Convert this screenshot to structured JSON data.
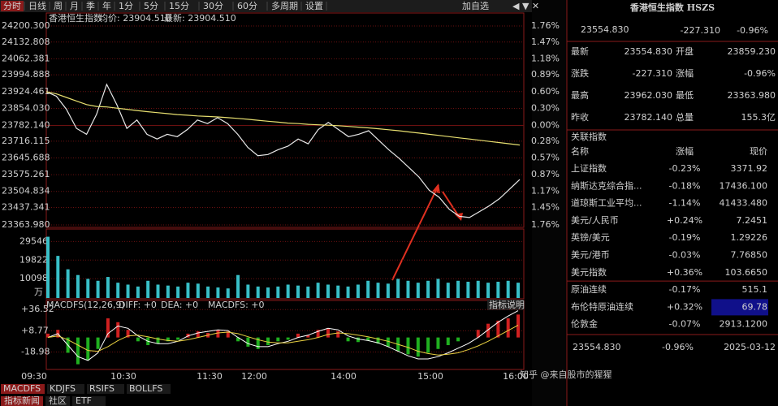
{
  "toolbar": {
    "tabs": [
      "分时",
      "日线",
      "周",
      "月",
      "季",
      "年",
      "1分",
      "5分",
      "15分",
      "30分",
      "60分",
      "多周期",
      "设置"
    ],
    "add": "加自选"
  },
  "chart_data": {
    "type": "line",
    "title": "香港恒生指数",
    "info": [
      "均价: 23904.510",
      "最新: 23904.510"
    ],
    "ylim": [
      23363.98,
      24200.3
    ],
    "yticks": [
      {
        "value": 24200.3,
        "label": "24200.300"
      },
      {
        "value": 24132.808,
        "label": "24132.808"
      },
      {
        "value": 24062.381,
        "label": "24062.381"
      },
      {
        "value": 23994.888,
        "label": "23994.888"
      },
      {
        "value": 23924.461,
        "label": "23924.461"
      },
      {
        "value": 23854.03,
        "label": "23854.030"
      },
      {
        "value": 23782.14,
        "label": "23782.140"
      },
      {
        "value": 23716.115,
        "label": "23716.115"
      },
      {
        "value": 23645.688,
        "label": "23645.688"
      },
      {
        "value": 23575.261,
        "label": "23575.261"
      },
      {
        "value": 23504.834,
        "label": "23504.834"
      },
      {
        "value": 23437.341,
        "label": "23437.341"
      },
      {
        "value": 23363.98,
        "label": "23363.980"
      }
    ],
    "pct_ticks": [
      "1.76%",
      "1.47%",
      "1.18%",
      "0.89%",
      "0.60%",
      "0.30%",
      "0.00%",
      "0.28%",
      "0.57%",
      "0.87%",
      "1.17%",
      "1.45%",
      "1.76%"
    ],
    "x_labels": [
      "09:30",
      "10:30",
      "11:30",
      "12:00",
      "14:00",
      "15:00",
      "16:00"
    ],
    "series": [
      {
        "color": "#e8e8e8",
        "values": [
          23924,
          23905,
          23850,
          23770,
          23745,
          23830,
          23955,
          23870,
          23770,
          23805,
          23745,
          23725,
          23745,
          23735,
          23765,
          23805,
          23790,
          23815,
          23790,
          23745,
          23690,
          23655,
          23660,
          23680,
          23695,
          23725,
          23705,
          23765,
          23795,
          23765,
          23735,
          23745,
          23760,
          23720,
          23680,
          23645,
          23605,
          23565,
          23510,
          23480,
          23430,
          23400,
          23395,
          23420,
          23445,
          23475,
          23515,
          23554.83
        ]
      },
      {
        "color": "#e8e070",
        "values": [
          23924,
          23915,
          23900,
          23885,
          23870,
          23862,
          23860,
          23855,
          23850,
          23845,
          23840,
          23836,
          23832,
          23828,
          23825,
          23822,
          23820,
          23818,
          23815,
          23812,
          23808,
          23804,
          23800,
          23796,
          23792,
          23790,
          23787,
          23785,
          23783,
          23781,
          23778,
          23775,
          23772,
          23768,
          23764,
          23760,
          23755,
          23750,
          23745,
          23740,
          23735,
          23730,
          23725,
          23720,
          23715,
          23710,
          23705,
          23700
        ]
      }
    ],
    "volume": {
      "ylim": [
        0,
        35200
      ],
      "yticks": [
        29546,
        19822,
        10098
      ],
      "unit": "万",
      "color": "#38c0c8",
      "values": [
        32000,
        22000,
        15000,
        12000,
        10000,
        9000,
        11000,
        8000,
        7000,
        6000,
        9000,
        7000,
        6500,
        6000,
        8000,
        7500,
        6000,
        5500,
        5000,
        12000,
        7000,
        6000,
        5500,
        6000,
        7000,
        6500,
        6000,
        8000,
        7000,
        6500,
        6000,
        7000,
        9000,
        8000,
        7500,
        10000,
        9000,
        8000,
        9000,
        10000,
        8000,
        9000,
        8500,
        9000,
        8000,
        8500,
        9000,
        8000
      ]
    },
    "macd": {
      "title": "MACDFS(12,26,9)",
      "fields": [
        "DIFF: +0",
        "DEA: +0",
        "MACDFS: +0"
      ],
      "help": "指标说明",
      "ylim": [
        -41.8,
        46.3
      ],
      "yticks": [
        {
          "value": 36.52,
          "label": "+36.52"
        },
        {
          "value": 8.77,
          "label": "+8.77"
        },
        -18.98
      ],
      "values": [
        5,
        10,
        -20,
        -35,
        -30,
        -15,
        25,
        20,
        10,
        -5,
        -10,
        -8,
        -5,
        -3,
        5,
        8,
        6,
        10,
        8,
        -5,
        -12,
        -15,
        -10,
        -5,
        -3,
        5,
        3,
        10,
        12,
        8,
        -5,
        -6,
        -4,
        -8,
        -12,
        -18,
        -22,
        -25,
        -20,
        -15,
        -10,
        -5,
        0,
        10,
        18,
        22,
        25,
        30
      ],
      "diff": [
        0,
        5,
        -10,
        -25,
        -30,
        -20,
        5,
        15,
        12,
        2,
        -5,
        -8,
        -8,
        -5,
        2,
        6,
        8,
        10,
        9,
        0,
        -8,
        -12,
        -12,
        -8,
        -5,
        0,
        3,
        8,
        12,
        10,
        2,
        -2,
        -4,
        -7,
        -12,
        -18,
        -24,
        -28,
        -28,
        -25,
        -20,
        -14,
        -8,
        0,
        10,
        20,
        28,
        35
      ],
      "dea": [
        0,
        2,
        -3,
        -10,
        -17,
        -18,
        -12,
        -4,
        2,
        3,
        1,
        -2,
        -4,
        -5,
        -3,
        0,
        3,
        6,
        7,
        5,
        1,
        -3,
        -6,
        -7,
        -7,
        -5,
        -3,
        0,
        4,
        6,
        5,
        3,
        1,
        -2,
        -5,
        -9,
        -13,
        -18,
        -21,
        -23,
        -22,
        -20,
        -16,
        -11,
        -5,
        2,
        9,
        16
      ]
    }
  },
  "tabs": {
    "indicators": [
      "MACDFS",
      "KDJFS",
      "RSIFS",
      "BOLLFS"
    ],
    "bottom": [
      "指标新闻",
      "社区",
      "ETF"
    ]
  },
  "quote": {
    "name": "香港恒生指数 HSZS",
    "last": "23554.830",
    "change": "-227.310",
    "pct": "-0.96%",
    "rows": [
      [
        "最新",
        "23554.830",
        "开盘",
        "23859.230"
      ],
      [
        "涨跌",
        "-227.310",
        "涨幅",
        "-0.96%"
      ],
      [
        "最高",
        "23962.030",
        "最低",
        "23363.980"
      ],
      [
        "昨收",
        "23782.140",
        "总量",
        "155.3亿"
      ]
    ]
  },
  "related": {
    "title": "关联指数",
    "headers": [
      "名称",
      "涨幅",
      "现价"
    ],
    "rows": [
      [
        "上证指数",
        "-0.23%",
        "3371.92"
      ],
      [
        "纳斯达克综合指...",
        "-0.18%",
        "17436.100"
      ],
      [
        "道琼斯工业平均...",
        "-1.14%",
        "41433.480"
      ],
      [
        "美元/人民币",
        "+0.24%",
        "7.2451"
      ],
      [
        "英镑/美元",
        "-0.19%",
        "1.29226"
      ],
      [
        "美元/港币",
        "-0.03%",
        "7.76850"
      ],
      [
        "美元指数",
        "+0.36%",
        "103.6650"
      ],
      [
        "原油连续",
        "-0.17%",
        "515.1"
      ],
      [
        "布伦特原油连续",
        "+0.32%",
        "69.78"
      ],
      [
        "伦敦金",
        "-0.07%",
        "2913.1200"
      ]
    ]
  },
  "footer": {
    "last": "23554.830",
    "pct": "-0.96%",
    "date": "2025-03-12"
  },
  "watermark": "知乎 @来自股市的猩猩"
}
